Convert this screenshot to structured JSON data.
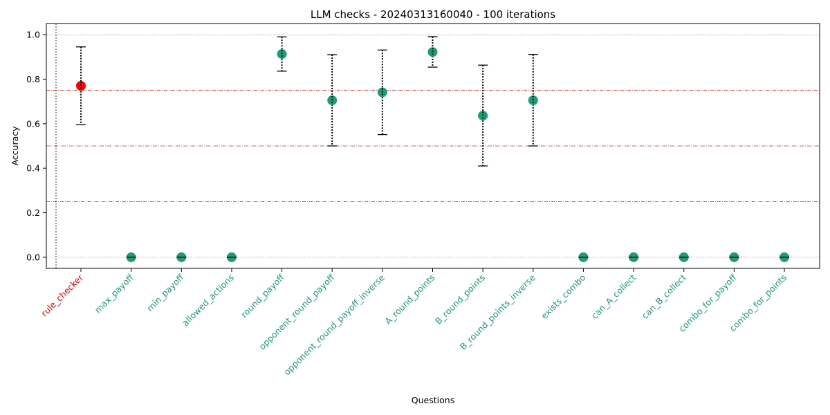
{
  "chart_data": {
    "type": "scatter",
    "title": "LLM checks - 20240313160040 - 100 iterations",
    "xlabel": "Questions",
    "ylabel": "Accuracy",
    "ylim": [
      -0.05,
      1.05
    ],
    "yticks": [
      "0.0",
      "0.2",
      "0.4",
      "0.6",
      "0.8",
      "1.0"
    ],
    "yticks_values": [
      0.0,
      0.2,
      0.4,
      0.6,
      0.8,
      1.0
    ],
    "reference_lines": [
      0.0,
      0.25,
      0.5,
      0.75,
      1.0
    ],
    "colors": {
      "highlight": "#ff0000",
      "normal": "#1b9e77",
      "reference": "#ff0000"
    },
    "points": [
      {
        "label": "rule_checker",
        "value": 0.77,
        "err_low": 0.595,
        "err_high": 0.945,
        "highlight": true
      },
      {
        "label": "max_payoff",
        "value": 0.0,
        "highlight": false
      },
      {
        "label": "min_payoff",
        "value": 0.0,
        "highlight": false
      },
      {
        "label": "allowed_actions",
        "value": 0.0,
        "highlight": false
      },
      {
        "label": "round_payoff",
        "value": 0.913,
        "err_low": 0.836,
        "err_high": 0.99,
        "highlight": false
      },
      {
        "label": "opponent_round_payoff",
        "value": 0.705,
        "err_low": 0.5,
        "err_high": 0.91,
        "highlight": false
      },
      {
        "label": "opponent_round_payoff_inverse",
        "value": 0.741,
        "err_low": 0.551,
        "err_high": 0.931,
        "highlight": false
      },
      {
        "label": "A_round_points",
        "value": 0.922,
        "err_low": 0.854,
        "err_high": 0.991,
        "highlight": false
      },
      {
        "label": "B_round_points",
        "value": 0.636,
        "err_low": 0.41,
        "err_high": 0.863,
        "highlight": false
      },
      {
        "label": "B_round_points_inverse",
        "value": 0.705,
        "err_low": 0.5,
        "err_high": 0.911,
        "highlight": false
      },
      {
        "label": "exists_combo",
        "value": 0.0,
        "highlight": false
      },
      {
        "label": "can_A_collect",
        "value": 0.0,
        "highlight": false
      },
      {
        "label": "can_B_collect",
        "value": 0.0,
        "highlight": false
      },
      {
        "label": "combo_for_payoff",
        "value": 0.0,
        "highlight": false
      },
      {
        "label": "combo_for_points",
        "value": 0.0,
        "highlight": false
      }
    ]
  }
}
